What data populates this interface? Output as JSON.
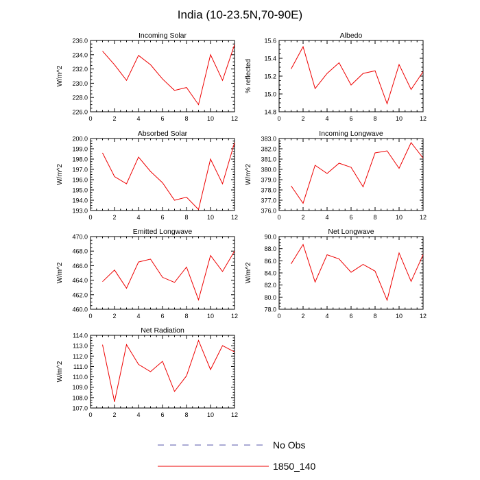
{
  "title": "India (10-23.5N,70-90E)",
  "x_ticks": [
    "0",
    "2",
    "4",
    "6",
    "8",
    "10",
    "12"
  ],
  "legend": [
    {
      "label": "No Obs",
      "color": "#5555aa",
      "dashed": true
    },
    {
      "label": "1850_140",
      "color": "#ee0000",
      "dashed": false
    }
  ],
  "chart_data": [
    {
      "type": "line",
      "title": "Incoming Solar",
      "ylabel": "W/m^2",
      "xlim": [
        0,
        12
      ],
      "ylim": [
        226.0,
        236.0
      ],
      "yticks": [
        "226.0",
        "228.0",
        "230.0",
        "232.0",
        "234.0",
        "236.0"
      ],
      "x": [
        1,
        2,
        3,
        4,
        5,
        6,
        7,
        8,
        9,
        10,
        11,
        12
      ],
      "series": [
        {
          "name": "1850_140",
          "values": [
            234.5,
            232.6,
            230.4,
            233.9,
            232.6,
            230.6,
            229.0,
            229.4,
            227.0,
            234.0,
            230.4,
            235.4
          ]
        }
      ]
    },
    {
      "type": "line",
      "title": "Albedo",
      "ylabel": "% reflected",
      "xlim": [
        0,
        12
      ],
      "ylim": [
        14.8,
        15.6
      ],
      "yticks": [
        "14.8",
        "15.0",
        "15.2",
        "15.4",
        "15.6"
      ],
      "x": [
        1,
        2,
        3,
        4,
        5,
        6,
        7,
        8,
        9,
        10,
        11,
        12
      ],
      "series": [
        {
          "name": "1850_140",
          "values": [
            15.28,
            15.53,
            15.06,
            15.23,
            15.35,
            15.1,
            15.23,
            15.26,
            14.89,
            15.33,
            15.05,
            15.25
          ]
        }
      ]
    },
    {
      "type": "line",
      "title": "Absorbed Solar",
      "ylabel": "W/m^2",
      "xlim": [
        0,
        12
      ],
      "ylim": [
        193.0,
        200.0
      ],
      "yticks": [
        "193.0",
        "194.0",
        "195.0",
        "196.0",
        "197.0",
        "198.0",
        "199.0",
        "200.0"
      ],
      "x": [
        1,
        2,
        3,
        4,
        5,
        6,
        7,
        8,
        9,
        10,
        11,
        12
      ],
      "series": [
        {
          "name": "1850_140",
          "values": [
            198.6,
            196.3,
            195.6,
            198.2,
            196.8,
            195.7,
            194.0,
            194.3,
            193.1,
            198.0,
            195.6,
            199.6
          ]
        }
      ]
    },
    {
      "type": "line",
      "title": "Incoming Longwave",
      "ylabel": "W/m^2",
      "xlim": [
        0,
        12
      ],
      "ylim": [
        376.0,
        383.0
      ],
      "yticks": [
        "376.0",
        "377.0",
        "378.0",
        "379.0",
        "380.0",
        "381.0",
        "382.0",
        "383.0"
      ],
      "x": [
        1,
        2,
        3,
        4,
        5,
        6,
        7,
        8,
        9,
        10,
        11,
        12
      ],
      "series": [
        {
          "name": "1850_140",
          "values": [
            378.4,
            376.7,
            380.4,
            379.6,
            380.6,
            380.2,
            378.3,
            381.6,
            381.8,
            380.1,
            382.6,
            381.1
          ]
        }
      ]
    },
    {
      "type": "line",
      "title": "Emitted Longwave",
      "ylabel": "W/m^2",
      "xlim": [
        0,
        12
      ],
      "ylim": [
        460.0,
        470.0
      ],
      "yticks": [
        "460.0",
        "462.0",
        "464.0",
        "466.0",
        "468.0",
        "470.0"
      ],
      "x": [
        1,
        2,
        3,
        4,
        5,
        6,
        7,
        8,
        9,
        10,
        11,
        12
      ],
      "series": [
        {
          "name": "1850_140",
          "values": [
            463.8,
            465.4,
            462.9,
            466.5,
            466.9,
            464.4,
            463.7,
            465.8,
            461.3,
            467.4,
            465.2,
            468.0
          ]
        }
      ]
    },
    {
      "type": "line",
      "title": "Net Longwave",
      "ylabel": "W/m^2",
      "xlim": [
        0,
        12
      ],
      "ylim": [
        78.0,
        90.0
      ],
      "yticks": [
        "78.0",
        "80.0",
        "82.0",
        "84.0",
        "86.0",
        "88.0",
        "90.0"
      ],
      "x": [
        1,
        2,
        3,
        4,
        5,
        6,
        7,
        8,
        9,
        10,
        11,
        12
      ],
      "series": [
        {
          "name": "1850_140",
          "values": [
            85.5,
            88.7,
            82.5,
            87.0,
            86.3,
            84.1,
            85.4,
            84.3,
            79.5,
            87.3,
            82.6,
            87.0
          ]
        }
      ]
    },
    {
      "type": "line",
      "title": "Net Radiation",
      "ylabel": "W/m^2",
      "xlim": [
        0,
        12
      ],
      "ylim": [
        107.0,
        114.0
      ],
      "yticks": [
        "107.0",
        "108.0",
        "109.0",
        "110.0",
        "111.0",
        "112.0",
        "113.0",
        "114.0"
      ],
      "x": [
        1,
        2,
        3,
        4,
        5,
        6,
        7,
        8,
        9,
        10,
        11,
        12
      ],
      "series": [
        {
          "name": "1850_140",
          "values": [
            113.1,
            107.6,
            113.1,
            111.2,
            110.5,
            111.5,
            108.6,
            110.1,
            113.5,
            110.7,
            113.0,
            112.4
          ]
        }
      ]
    }
  ]
}
